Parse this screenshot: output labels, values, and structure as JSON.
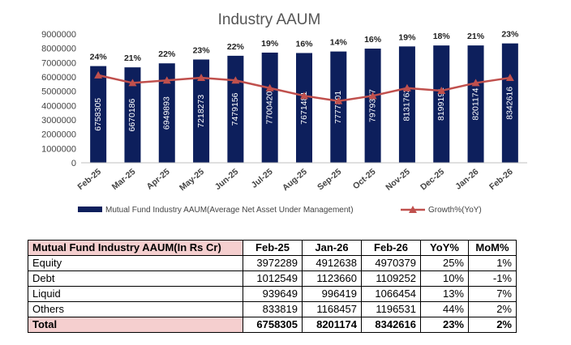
{
  "chart_data": {
    "type": "bar",
    "title": "Industry AAUM",
    "categories": [
      "Feb-25",
      "Mar-25",
      "Apr-25",
      "May-25",
      "Jun-25",
      "Jul-25",
      "Aug-25",
      "Sep-25",
      "Oct-25",
      "Nov-25",
      "Dec-25",
      "Jan-26",
      "Feb-26"
    ],
    "series": [
      {
        "name": "Mutual Fund Industry AAUM(Average Net Asset Under Management)",
        "type": "bar",
        "color": "#0d1f5c",
        "values": [
          6758305,
          6670186,
          6949893,
          7218273,
          7479156,
          7700420,
          7671481,
          7777801,
          7979377,
          8131763,
          8199191,
          8201174,
          8342616
        ],
        "labels": [
          "6758305",
          "6670186",
          "6949893",
          "7218273",
          "7479156",
          "7700420",
          "7671481",
          "7777801",
          "7979377",
          "8131763",
          "8199191",
          "8201174",
          "8342616"
        ]
      },
      {
        "name": "Growth%(YoY)",
        "type": "line",
        "color": "#c0504d",
        "values": [
          24,
          21,
          22,
          23,
          22,
          19,
          16,
          14,
          16,
          19,
          18,
          21,
          23
        ],
        "labels": [
          "24%",
          "21%",
          "22%",
          "23%",
          "22%",
          "19%",
          "16%",
          "14%",
          "16%",
          "19%",
          "18%",
          "21%",
          "23%"
        ]
      }
    ],
    "ylim": [
      0,
      9000000
    ],
    "yticks": [
      "0",
      "1000000",
      "2000000",
      "3000000",
      "4000000",
      "5000000",
      "6000000",
      "7000000",
      "8000000",
      "9000000"
    ],
    "grid": false,
    "legend": "bottom"
  },
  "table": {
    "headers": [
      "Mutual Fund Industry AAUM(In Rs Cr)",
      "Feb-25",
      "Jan-26",
      "Feb-26",
      "YoY%",
      "MoM%"
    ],
    "rows": [
      [
        "Equity",
        "3972289",
        "4912638",
        "4970379",
        "25%",
        "1%"
      ],
      [
        "Debt",
        "1012549",
        "1123660",
        "1109252",
        "10%",
        "-1%"
      ],
      [
        "Liquid",
        "939649",
        "996419",
        "1066454",
        "13%",
        "7%"
      ],
      [
        "Others",
        "833819",
        "1168457",
        "1196531",
        "44%",
        "2%"
      ]
    ],
    "total": [
      "Total",
      "6758305",
      "8201174",
      "8342616",
      "23%",
      "2%"
    ]
  }
}
